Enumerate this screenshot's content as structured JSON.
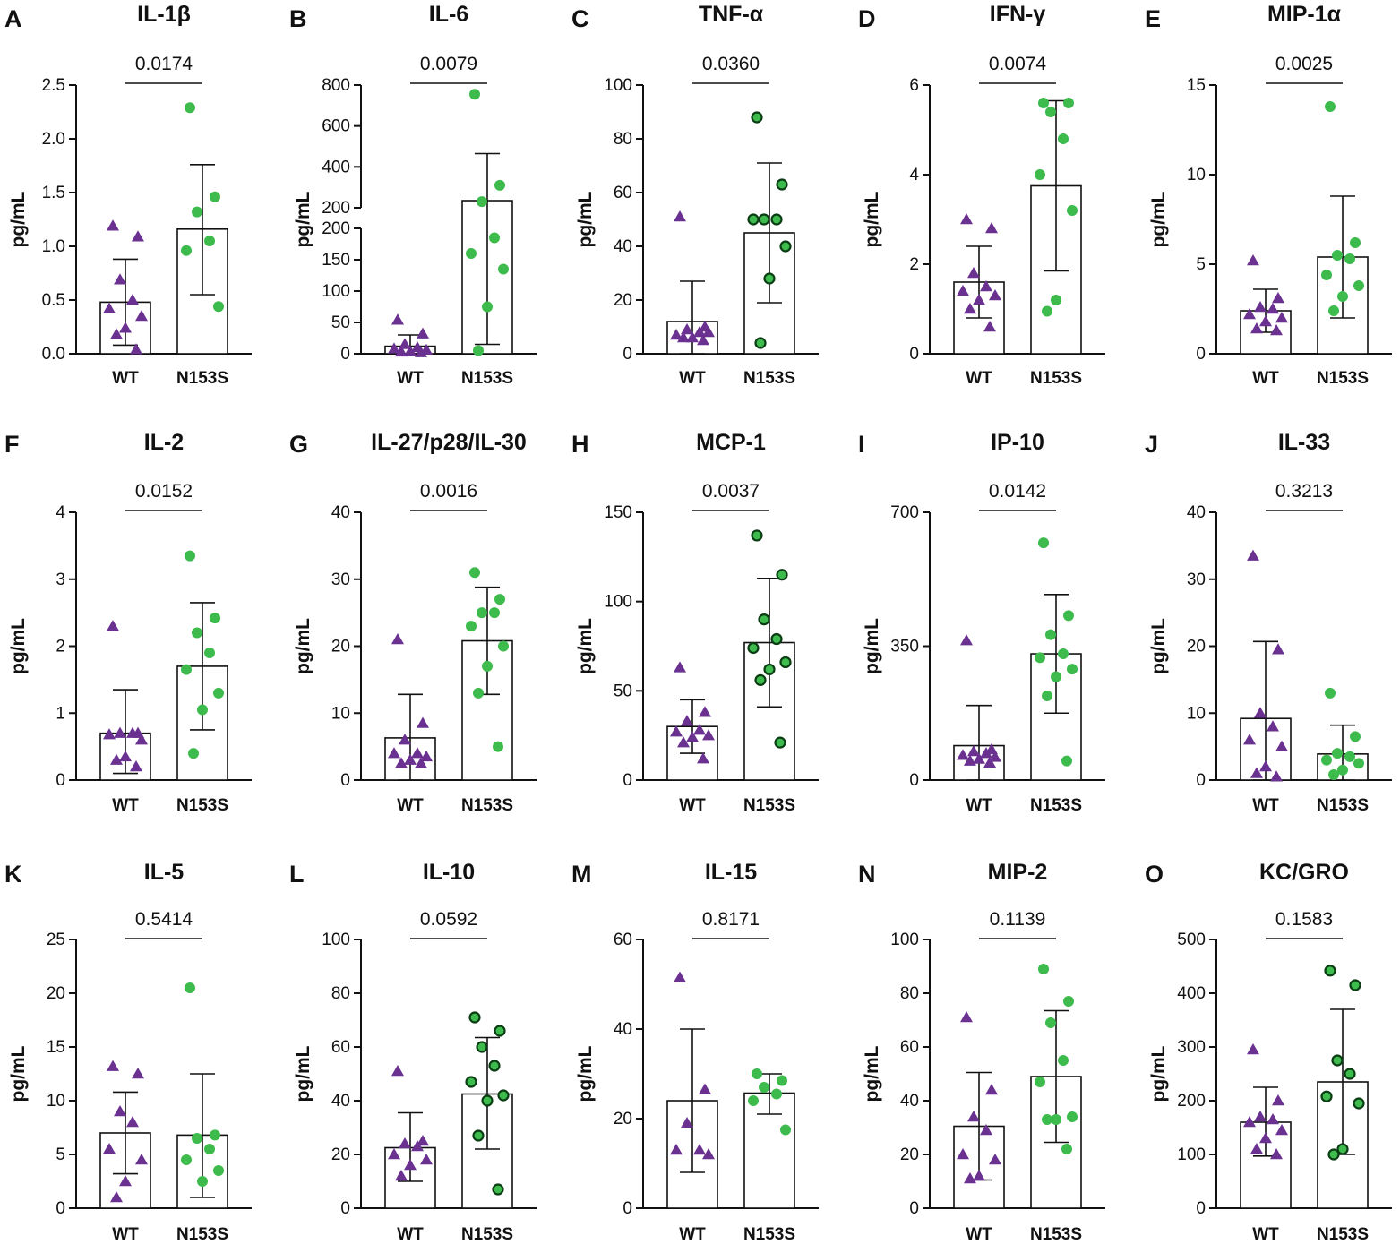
{
  "figure": {
    "colors": {
      "wt": "#6a3191",
      "mutant": "#3dbb4c",
      "mutant_dark": "#1a6f2a",
      "axis": "#111111"
    }
  },
  "chart_data": [
    {
      "panel": "A",
      "title": "IL-1β",
      "type": "bar",
      "ylabel": "pg/mL",
      "categories": [
        "WT",
        "N153S"
      ],
      "ylim": [
        0,
        2.5
      ],
      "yticks": [
        "0.0",
        "0.5",
        "1.0",
        "1.5",
        "2.0",
        "2.5"
      ],
      "p_value": "0.0174",
      "series": [
        {
          "name": "WT",
          "mean": 0.48,
          "sd_low": 0.08,
          "sd_high": 0.88,
          "points": [
            1.19,
            1.09,
            0.69,
            0.5,
            0.42,
            0.35,
            0.24,
            0.18,
            0.04
          ]
        },
        {
          "name": "N153S",
          "mean": 1.16,
          "sd_low": 0.55,
          "sd_high": 1.76,
          "points": [
            2.29,
            1.46,
            1.32,
            1.05,
            0.96,
            0.44
          ]
        }
      ]
    },
    {
      "panel": "B",
      "title": "IL-6",
      "type": "bar",
      "ylabel": "pg/mL",
      "categories": [
        "WT",
        "N153S"
      ],
      "broken_axis": true,
      "ylim": [
        0,
        800
      ],
      "yticks": [
        "0",
        "50",
        "100",
        "150",
        "200",
        "200",
        "400",
        "600",
        "800"
      ],
      "p_value": "0.0079",
      "series": [
        {
          "name": "WT",
          "mean": 12,
          "sd_low": 0,
          "sd_high": 30,
          "points": [
            54,
            32,
            15,
            10,
            8,
            6,
            4,
            3,
            2
          ]
        },
        {
          "name": "N153S",
          "mean": 235,
          "sd_low": 15,
          "sd_high": 465,
          "points": [
            755,
            310,
            230,
            185,
            160,
            135,
            75,
            5
          ]
        }
      ]
    },
    {
      "panel": "C",
      "title": "TNF-α",
      "type": "bar",
      "ylabel": "pg/mL",
      "categories": [
        "WT",
        "N153S"
      ],
      "ylim": [
        0,
        100
      ],
      "yticks": [
        "0",
        "20",
        "40",
        "60",
        "80",
        "100"
      ],
      "p_value": "0.0360",
      "series": [
        {
          "name": "WT",
          "mean": 12,
          "sd_low": 0,
          "sd_high": 27,
          "points": [
            51,
            10,
            9,
            8,
            7,
            8,
            6,
            6,
            5
          ]
        },
        {
          "name": "N153S",
          "mean": 45,
          "sd_low": 19,
          "sd_high": 71,
          "points": [
            88,
            63,
            50,
            50,
            50,
            40,
            28,
            4
          ]
        }
      ]
    },
    {
      "panel": "D",
      "title": "IFN-γ",
      "type": "bar",
      "ylabel": "pg/mL",
      "categories": [
        "WT",
        "N153S"
      ],
      "ylim": [
        0,
        6
      ],
      "yticks": [
        "0",
        "2",
        "4",
        "6"
      ],
      "p_value": "0.0074",
      "series": [
        {
          "name": "WT",
          "mean": 1.6,
          "sd_low": 0.8,
          "sd_high": 2.4,
          "points": [
            3.0,
            2.8,
            1.8,
            1.5,
            1.4,
            1.3,
            1.2,
            1.0,
            0.6
          ]
        },
        {
          "name": "N153S",
          "mean": 3.75,
          "sd_low": 1.85,
          "sd_high": 5.65,
          "points": [
            5.6,
            5.6,
            5.4,
            4.8,
            4.0,
            3.2,
            1.2,
            0.95
          ]
        }
      ]
    },
    {
      "panel": "E",
      "title": "MIP-1α",
      "type": "bar",
      "ylabel": "pg/mL",
      "categories": [
        "WT",
        "N153S"
      ],
      "ylim": [
        0,
        15
      ],
      "yticks": [
        "0",
        "5",
        "10",
        "15"
      ],
      "p_value": "0.0025",
      "series": [
        {
          "name": "WT",
          "mean": 2.4,
          "sd_low": 1.2,
          "sd_high": 3.6,
          "points": [
            5.2,
            3.1,
            2.6,
            2.5,
            2.2,
            2.0,
            1.8,
            1.4,
            1.3
          ]
        },
        {
          "name": "N153S",
          "mean": 5.4,
          "sd_low": 2.0,
          "sd_high": 8.8,
          "points": [
            13.8,
            6.2,
            5.5,
            5.3,
            4.4,
            3.8,
            3.2,
            2.4
          ]
        }
      ]
    },
    {
      "panel": "F",
      "title": "IL-2",
      "type": "bar",
      "ylabel": "pg/mL",
      "categories": [
        "WT",
        "N153S"
      ],
      "ylim": [
        0,
        4
      ],
      "yticks": [
        "0",
        "1",
        "2",
        "3",
        "4"
      ],
      "p_value": "0.0152",
      "series": [
        {
          "name": "WT",
          "mean": 0.7,
          "sd_low": 0.1,
          "sd_high": 1.35,
          "points": [
            2.3,
            0.7,
            0.7,
            0.7,
            0.68,
            0.6,
            0.35,
            0.3,
            0.2
          ]
        },
        {
          "name": "N153S",
          "mean": 1.7,
          "sd_low": 0.75,
          "sd_high": 2.65,
          "points": [
            3.35,
            2.42,
            2.2,
            1.9,
            1.65,
            1.3,
            1.05,
            0.4
          ]
        }
      ]
    },
    {
      "panel": "G",
      "title": "IL-27/p28/IL-30",
      "type": "bar",
      "ylabel": "pg/mL",
      "categories": [
        "WT",
        "N153S"
      ],
      "ylim": [
        0,
        40
      ],
      "yticks": [
        "0",
        "10",
        "20",
        "30",
        "40"
      ],
      "p_value": "0.0016",
      "series": [
        {
          "name": "WT",
          "mean": 6.3,
          "sd_low": 0,
          "sd_high": 12.8,
          "points": [
            21,
            8.5,
            6,
            4,
            4,
            3.5,
            3,
            2.5,
            2.5
          ]
        },
        {
          "name": "N153S",
          "mean": 20.8,
          "sd_low": 12.8,
          "sd_high": 28.8,
          "points": [
            31,
            27,
            25,
            25,
            23,
            20,
            17,
            13,
            5
          ]
        }
      ]
    },
    {
      "panel": "H",
      "title": "MCP-1",
      "type": "bar",
      "ylabel": "pg/mL",
      "categories": [
        "WT",
        "N153S"
      ],
      "ylim": [
        0,
        150
      ],
      "yticks": [
        "0",
        "50",
        "100",
        "150"
      ],
      "p_value": "0.0037",
      "series": [
        {
          "name": "WT",
          "mean": 30,
          "sd_low": 15,
          "sd_high": 45,
          "points": [
            63,
            38,
            33,
            28,
            27,
            25,
            24,
            21,
            12
          ]
        },
        {
          "name": "N153S",
          "mean": 77,
          "sd_low": 41,
          "sd_high": 113,
          "points": [
            137,
            115,
            90,
            79,
            74,
            66,
            62,
            56,
            21
          ]
        }
      ]
    },
    {
      "panel": "I",
      "title": "IP-10",
      "type": "bar",
      "ylabel": "pg/mL",
      "categories": [
        "WT",
        "N153S"
      ],
      "ylim": [
        0,
        700
      ],
      "yticks": [
        "0",
        "350",
        "700"
      ],
      "p_value": "0.0142",
      "series": [
        {
          "name": "WT",
          "mean": 90,
          "sd_low": 0,
          "sd_high": 195,
          "points": [
            365,
            80,
            75,
            70,
            65,
            60,
            55,
            50,
            45
          ]
        },
        {
          "name": "N153S",
          "mean": 330,
          "sd_low": 175,
          "sd_high": 485,
          "points": [
            620,
            430,
            380,
            330,
            320,
            290,
            270,
            220,
            50
          ]
        }
      ]
    },
    {
      "panel": "J",
      "title": "IL-33",
      "type": "bar",
      "ylabel": "pg/mL",
      "categories": [
        "WT",
        "N153S"
      ],
      "ylim": [
        0,
        40
      ],
      "yticks": [
        "0",
        "10",
        "20",
        "30",
        "40"
      ],
      "p_value": "0.3213",
      "series": [
        {
          "name": "WT",
          "mean": 9.2,
          "sd_low": 0,
          "sd_high": 20.7,
          "points": [
            33.5,
            19.5,
            10,
            8,
            6,
            5,
            2,
            1,
            0.5
          ]
        },
        {
          "name": "N153S",
          "mean": 3.9,
          "sd_low": 0,
          "sd_high": 8.2,
          "points": [
            13,
            6.5,
            4,
            3.5,
            3,
            2.5,
            1.5,
            0.8
          ]
        }
      ]
    },
    {
      "panel": "K",
      "title": "IL-5",
      "type": "bar",
      "ylabel": "pg/mL",
      "categories": [
        "WT",
        "N153S"
      ],
      "ylim": [
        0,
        25
      ],
      "yticks": [
        "0",
        "5",
        "10",
        "15",
        "20",
        "25"
      ],
      "p_value": "0.5414",
      "series": [
        {
          "name": "WT",
          "mean": 7.0,
          "sd_low": 3.2,
          "sd_high": 10.8,
          "points": [
            13.2,
            12.5,
            9.0,
            8.0,
            5.5,
            4.5,
            2.5,
            1.0
          ]
        },
        {
          "name": "N153S",
          "mean": 6.8,
          "sd_low": 1.0,
          "sd_high": 12.5,
          "points": [
            20.5,
            6.8,
            6.5,
            5.5,
            4.5,
            3.5,
            2.5
          ]
        }
      ]
    },
    {
      "panel": "L",
      "title": "IL-10",
      "type": "bar",
      "ylabel": "pg/mL",
      "categories": [
        "WT",
        "N153S"
      ],
      "ylim": [
        0,
        100
      ],
      "yticks": [
        "0",
        "20",
        "40",
        "60",
        "80",
        "100"
      ],
      "p_value": "0.0592",
      "series": [
        {
          "name": "WT",
          "mean": 22.5,
          "sd_low": 10,
          "sd_high": 35.5,
          "points": [
            51,
            25,
            24,
            23,
            20,
            18,
            16,
            12
          ]
        },
        {
          "name": "N153S",
          "mean": 42.5,
          "sd_low": 22,
          "sd_high": 63.5,
          "points": [
            71,
            66,
            60,
            53,
            47,
            42,
            40,
            27,
            7
          ]
        }
      ]
    },
    {
      "panel": "M",
      "title": "IL-15",
      "type": "bar",
      "ylabel": "pg/mL",
      "categories": [
        "WT",
        "N153S"
      ],
      "ylim": [
        0,
        60
      ],
      "yticks": [
        "0",
        "20",
        "40",
        "60"
      ],
      "p_value": "0.8171",
      "series": [
        {
          "name": "WT",
          "mean": 24,
          "sd_low": 8,
          "sd_high": 40,
          "points": [
            51.5,
            26.5,
            19,
            13,
            13,
            12
          ]
        },
        {
          "name": "N153S",
          "mean": 25.7,
          "sd_low": 21,
          "sd_high": 30,
          "points": [
            30,
            28.5,
            27,
            25.5,
            24,
            17.5
          ]
        }
      ]
    },
    {
      "panel": "N",
      "title": "MIP-2",
      "type": "bar",
      "ylabel": "pg/mL",
      "categories": [
        "WT",
        "N153S"
      ],
      "ylim": [
        0,
        100
      ],
      "yticks": [
        "0",
        "20",
        "40",
        "60",
        "80",
        "100"
      ],
      "p_value": "0.1139",
      "series": [
        {
          "name": "WT",
          "mean": 30.5,
          "sd_low": 10.5,
          "sd_high": 50.5,
          "points": [
            71,
            44,
            34,
            29,
            20,
            18,
            12,
            11
          ]
        },
        {
          "name": "N153S",
          "mean": 49,
          "sd_low": 24.5,
          "sd_high": 73.5,
          "points": [
            89,
            77,
            69,
            55,
            47,
            34,
            33,
            33,
            22
          ]
        }
      ]
    },
    {
      "panel": "O",
      "title": "KC/GRO",
      "type": "bar",
      "ylabel": "pg/mL",
      "categories": [
        "WT",
        "N153S"
      ],
      "ylim": [
        0,
        500
      ],
      "yticks": [
        "0",
        "100",
        "200",
        "300",
        "400",
        "500"
      ],
      "p_value": "0.1583",
      "series": [
        {
          "name": "WT",
          "mean": 160,
          "sd_low": 97,
          "sd_high": 225,
          "points": [
            295,
            200,
            170,
            165,
            160,
            145,
            130,
            110,
            100
          ]
        },
        {
          "name": "N153S",
          "mean": 235,
          "sd_low": 100,
          "sd_high": 370,
          "points": [
            442,
            415,
            275,
            250,
            208,
            195,
            110,
            100
          ]
        }
      ]
    }
  ]
}
